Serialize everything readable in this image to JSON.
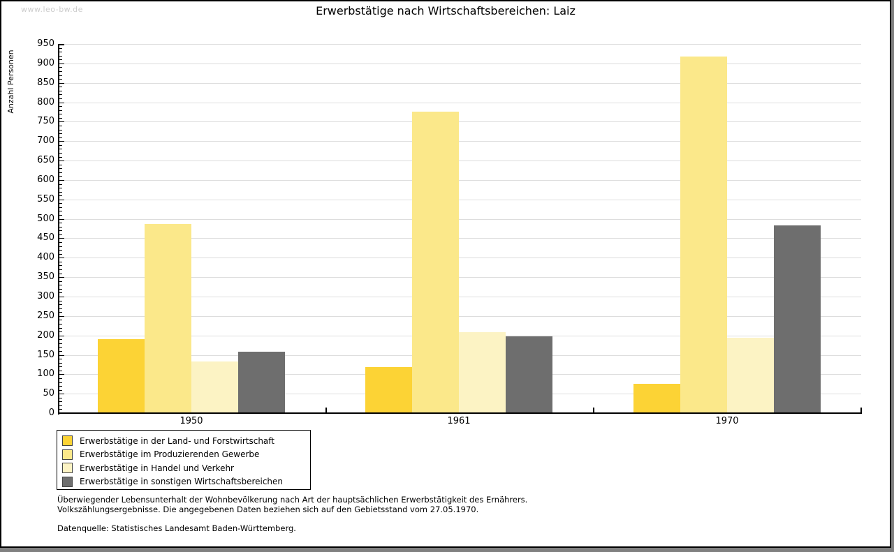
{
  "watermark": "www.leo-bw.de",
  "chart_data": {
    "type": "bar",
    "title": "Erwerbstätige nach Wirtschaftsbereichen: Laiz",
    "ylabel": "Anzahl Personen",
    "xlabel": "",
    "categories": [
      "1950",
      "1961",
      "1970"
    ],
    "series": [
      {
        "name": "Erwerbstätige in der Land- und Forstwirtschaft",
        "color": "#FCD335",
        "values": [
          190,
          119,
          75
        ]
      },
      {
        "name": "Erwerbstätige im Produzierenden Gewerbe",
        "color": "#FBE88A",
        "values": [
          487,
          775,
          918
        ]
      },
      {
        "name": "Erwerbstätige in Handel und Verkehr",
        "color": "#FCF3C4",
        "values": [
          133,
          208,
          194
        ]
      },
      {
        "name": "Erwerbstätige in sonstigen Wirtschaftsbereichen",
        "color": "#6E6E6E",
        "values": [
          158,
          198,
          483
        ]
      }
    ],
    "ylim": [
      0,
      950
    ],
    "ytick_step": 50,
    "yminor_step": 10,
    "grid": true,
    "legend_position": "bottom-left",
    "colors": {
      "gridline": "#DDDDDD",
      "axis": "#000000",
      "watermark": "#CCCCCC"
    }
  },
  "footnotes": [
    "Überwiegender Lebensunterhalt der Wohnbevölkerung nach Art der hauptsächlichen Erwerbstätigkeit des Ernährers.",
    "Volkszählungsergebnisse. Die angegebenen Daten beziehen sich auf den Gebietsstand vom 27.05.1970.",
    "Datenquelle: Statistisches Landesamt Baden-Württemberg."
  ]
}
